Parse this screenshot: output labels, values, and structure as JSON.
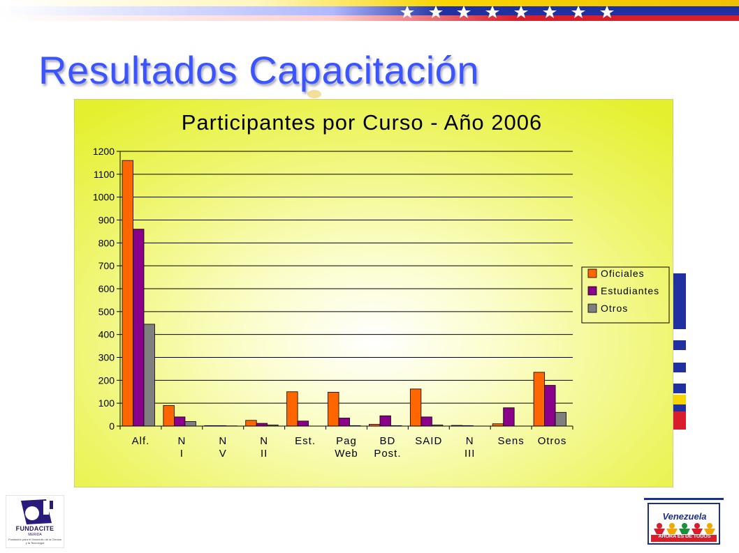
{
  "slide": {
    "title": "Resultados Capacitación",
    "colors": {
      "title": "#3a55ff",
      "flag_yellow": "#f8d400",
      "flag_blue": "#2030a0",
      "flag_red": "#d81e2a"
    }
  },
  "chart_data": {
    "type": "bar",
    "title": "Participantes por Curso - Año 2006",
    "xlabel": "",
    "ylabel": "",
    "categories": [
      "Alf.",
      "N I",
      "N V",
      "N II",
      "Est.",
      "Pag Web",
      "BD Post.",
      "SAID",
      "N III",
      "Sens",
      "Otros"
    ],
    "series": [
      {
        "name": "Oficiales",
        "color": "#ff6600",
        "values": [
          1160,
          90,
          2,
          25,
          150,
          148,
          8,
          162,
          3,
          10,
          235
        ]
      },
      {
        "name": "Estudiantes",
        "color": "#8b008b",
        "values": [
          860,
          40,
          2,
          12,
          22,
          35,
          45,
          40,
          2,
          80,
          178
        ]
      },
      {
        "name": "Otros",
        "color": "#7f7f7f",
        "values": [
          445,
          20,
          1,
          5,
          0,
          2,
          2,
          5,
          0,
          0,
          60
        ]
      }
    ],
    "ylim": [
      0,
      1200
    ],
    "yticks": [
      0,
      100,
      200,
      300,
      400,
      500,
      600,
      700,
      800,
      900,
      1000,
      1100,
      1200
    ],
    "grid": true,
    "legend_position": "right",
    "background": "radial yellow (#ffffff center to #e6f23a edge)"
  },
  "logos": {
    "left": {
      "name": "FUNDACITE",
      "sub": "MERIDA",
      "tagline": "Fundación para el Desarrollo de la Ciencia y la Tecnología"
    },
    "right": {
      "name": "Venezuela",
      "sub": "AHORA ES DE TODOS"
    }
  }
}
